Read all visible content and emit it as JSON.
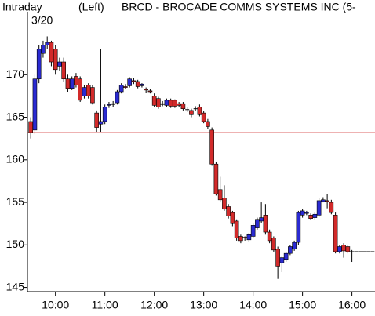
{
  "chart_data": {
    "type": "candlestick",
    "label": "Intraday",
    "side": "(Left)",
    "title": "BRCD - BROCADE COMMS SYSTEMS INC  (5-",
    "date": "3/20",
    "up_color": "#2a2ad2",
    "down_color": "#d22a2a",
    "reference_line": {
      "value": 163.2,
      "color": "#d03030"
    },
    "x": [
      570,
      575,
      580,
      585,
      590,
      595,
      600,
      605,
      610,
      615,
      620,
      625,
      630,
      635,
      640,
      645,
      650,
      655,
      660,
      665,
      670,
      675,
      680,
      685,
      690,
      695,
      700,
      705,
      710,
      715,
      720,
      725,
      730,
      735,
      740,
      745,
      750,
      755,
      760,
      765,
      770,
      775,
      780,
      785,
      790,
      795,
      800,
      805,
      810,
      815,
      820,
      825,
      830,
      835,
      840,
      845,
      850,
      855,
      860,
      865,
      870,
      875,
      880,
      885,
      890,
      895,
      900,
      905,
      910,
      915,
      920,
      925,
      930,
      935,
      940,
      945,
      950,
      955,
      960,
      965,
      970,
      975,
      980,
      985
    ],
    "open": [
      164.5,
      163.5,
      169.5,
      172.5,
      173.5,
      173.8,
      173,
      171,
      171.5,
      169.5,
      168.4,
      169.8,
      169.5,
      167.5,
      168.8,
      168.5,
      165.5,
      164.2,
      164.5,
      166.4,
      166.5,
      166.7,
      168,
      168.6,
      168.7,
      169.3,
      169.2,
      168.7,
      168.3,
      168.1,
      167.5,
      167.2,
      166.5,
      166.4,
      167,
      167,
      166.6,
      166.6,
      165.9,
      165.8,
      166,
      166.2,
      165.5,
      164.5,
      163.5,
      159.5,
      156.5,
      155.5,
      154.5,
      153.8,
      152.8,
      151,
      150.9,
      150.6,
      151,
      152,
      152.8,
      153.5,
      151.5,
      150.8,
      149.5,
      147.9,
      148.3,
      149,
      149.5,
      150.3,
      153.5,
      153.7,
      153.5,
      153.2,
      153.5,
      155.1,
      155.2,
      155,
      153.5,
      149.2,
      150,
      149.8,
      149.2,
      149.2,
      149.2,
      149.2,
      149.2,
      149.2
    ],
    "high": [
      165,
      170,
      173.5,
      174,
      174.5,
      174,
      173.5,
      172,
      172,
      170,
      169.8,
      170.2,
      169.8,
      168.8,
      169,
      168.8,
      165.8,
      173,
      166.5,
      166.8,
      166.9,
      168.2,
      169,
      168.9,
      169.7,
      169.6,
      169.4,
      169,
      168.5,
      168.3,
      167.8,
      167.4,
      166.9,
      167.2,
      167.2,
      167.1,
      166.8,
      166.8,
      166.2,
      166,
      166.3,
      166.5,
      165.7,
      164.8,
      163.8,
      159.8,
      158,
      157,
      154.8,
      154,
      153,
      151.2,
      151,
      151.4,
      152.5,
      153.2,
      155,
      154.8,
      151.8,
      151,
      149.8,
      148.6,
      149.2,
      150,
      150.5,
      154,
      154.2,
      154,
      153.7,
      153.8,
      155.5,
      155.6,
      156,
      155.3,
      153.8,
      150,
      150.2,
      150,
      149.4,
      149.2,
      149.2,
      149.2,
      149.2,
      149.2
    ],
    "low": [
      162.5,
      163,
      169,
      172,
      173,
      171,
      170,
      170.5,
      169.2,
      168,
      168.2,
      168.5,
      166.8,
      167.2,
      167.2,
      166.5,
      163.3,
      163.3,
      164.2,
      166.1,
      166.2,
      166.5,
      167.8,
      168.3,
      168.5,
      168.9,
      168.4,
      168.5,
      167.9,
      167.8,
      166.2,
      166,
      166.3,
      166.2,
      166.1,
      166.1,
      166.2,
      165.8,
      165.6,
      165,
      165.7,
      165.1,
      164.3,
      163.6,
      159.3,
      155.8,
      155,
      154,
      153.1,
      152.2,
      150.5,
      150.2,
      150.5,
      150.3,
      150.8,
      151.8,
      152.6,
      151.2,
      150.2,
      149.2,
      146,
      146.8,
      148,
      148.8,
      149.3,
      150,
      153.2,
      153.5,
      152.9,
      153,
      153.3,
      155,
      154.3,
      153.6,
      149,
      149,
      148.5,
      149,
      148,
      149.2,
      149.2,
      149.2,
      149.2,
      149.2
    ],
    "close": [
      163.2,
      169.5,
      173,
      173.5,
      173.8,
      171.5,
      170.6,
      171.5,
      169.5,
      168.4,
      169.5,
      168.8,
      167,
      168.5,
      167.5,
      166.7,
      163.8,
      164.5,
      166.2,
      166.5,
      166.6,
      168,
      168.8,
      168.5,
      169.5,
      169.2,
      168.6,
      168.9,
      168.2,
      168,
      166.4,
      166.2,
      166.6,
      167,
      166.3,
      166.3,
      166.4,
      166,
      165.9,
      165.3,
      166,
      165.3,
      164.5,
      163.9,
      159.5,
      156,
      155.3,
      154.2,
      153.4,
      152.5,
      150.8,
      150.5,
      150.8,
      151.2,
      152.3,
      153,
      153.2,
      151.5,
      150.5,
      149.4,
      147.5,
      148.5,
      149,
      149.8,
      150.3,
      153.8,
      154,
      153.8,
      153.1,
      153.6,
      155.2,
      155.3,
      155.1,
      153.8,
      149.2,
      149.8,
      149.3,
      149.2,
      149.2,
      149.2,
      149.2,
      149.2,
      149.2,
      149.2
    ],
    "xlim": [
      566,
      988
    ],
    "ylim": [
      144.5,
      177.4
    ],
    "xticks": [
      {
        "value": 600,
        "label": "10:00"
      },
      {
        "value": 660,
        "label": "11:00"
      },
      {
        "value": 720,
        "label": "12:00"
      },
      {
        "value": 780,
        "label": "13:00"
      },
      {
        "value": 840,
        "label": "14:00"
      },
      {
        "value": 900,
        "label": "15:00"
      },
      {
        "value": 960,
        "label": "16:00"
      }
    ],
    "yticks": [
      145,
      150,
      155,
      160,
      165,
      170
    ]
  }
}
